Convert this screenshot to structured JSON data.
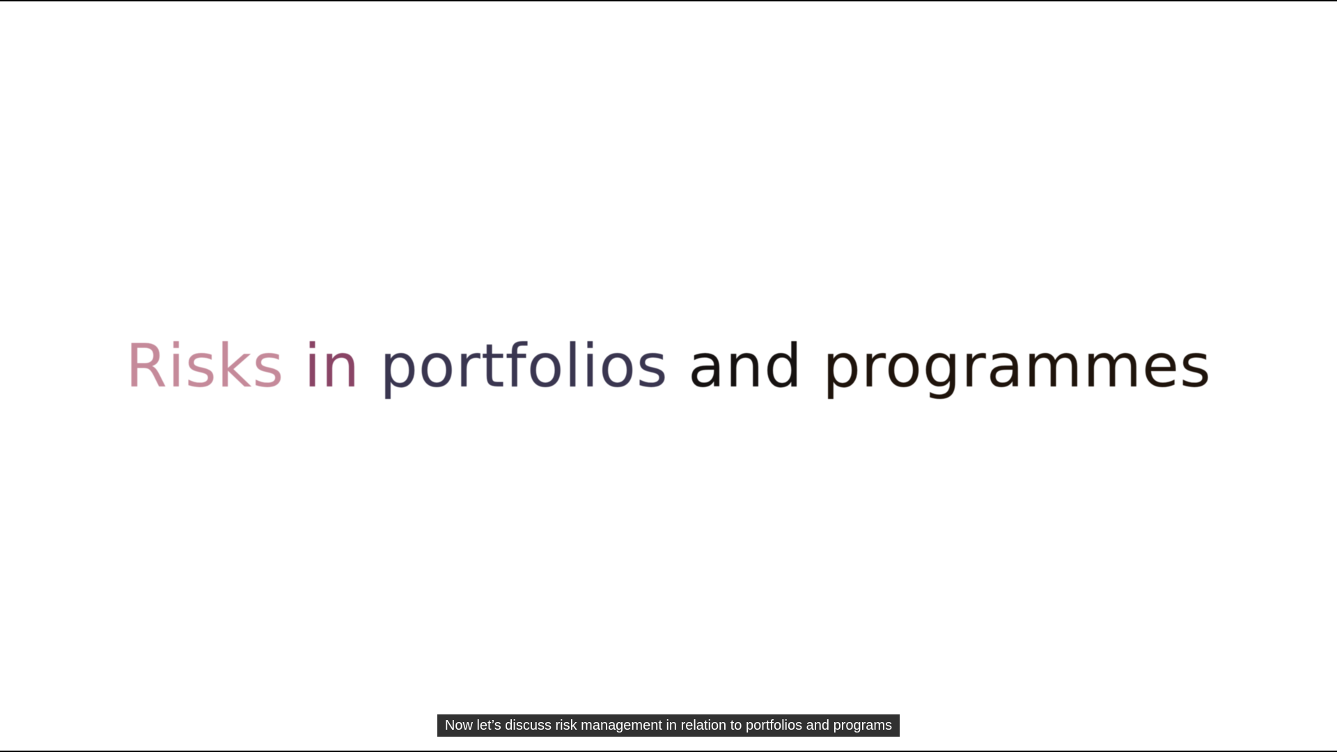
{
  "slide": {
    "title_words": [
      {
        "text": "Risks",
        "color": "#c58a9a"
      },
      {
        "text": "in",
        "color": "#8a4566"
      },
      {
        "text": "portfolios",
        "color": "#3a3650"
      },
      {
        "text": "and",
        "color": "#161211"
      },
      {
        "text": "programmes",
        "color": "#1f140c"
      }
    ]
  },
  "subtitle": {
    "text": "Now let’s discuss risk management in relation to portfolios and programs"
  },
  "colors": {
    "background": "#ffffff",
    "letterbox": "#000000",
    "caption_bg": "#141414",
    "caption_text": "#ffffff"
  }
}
